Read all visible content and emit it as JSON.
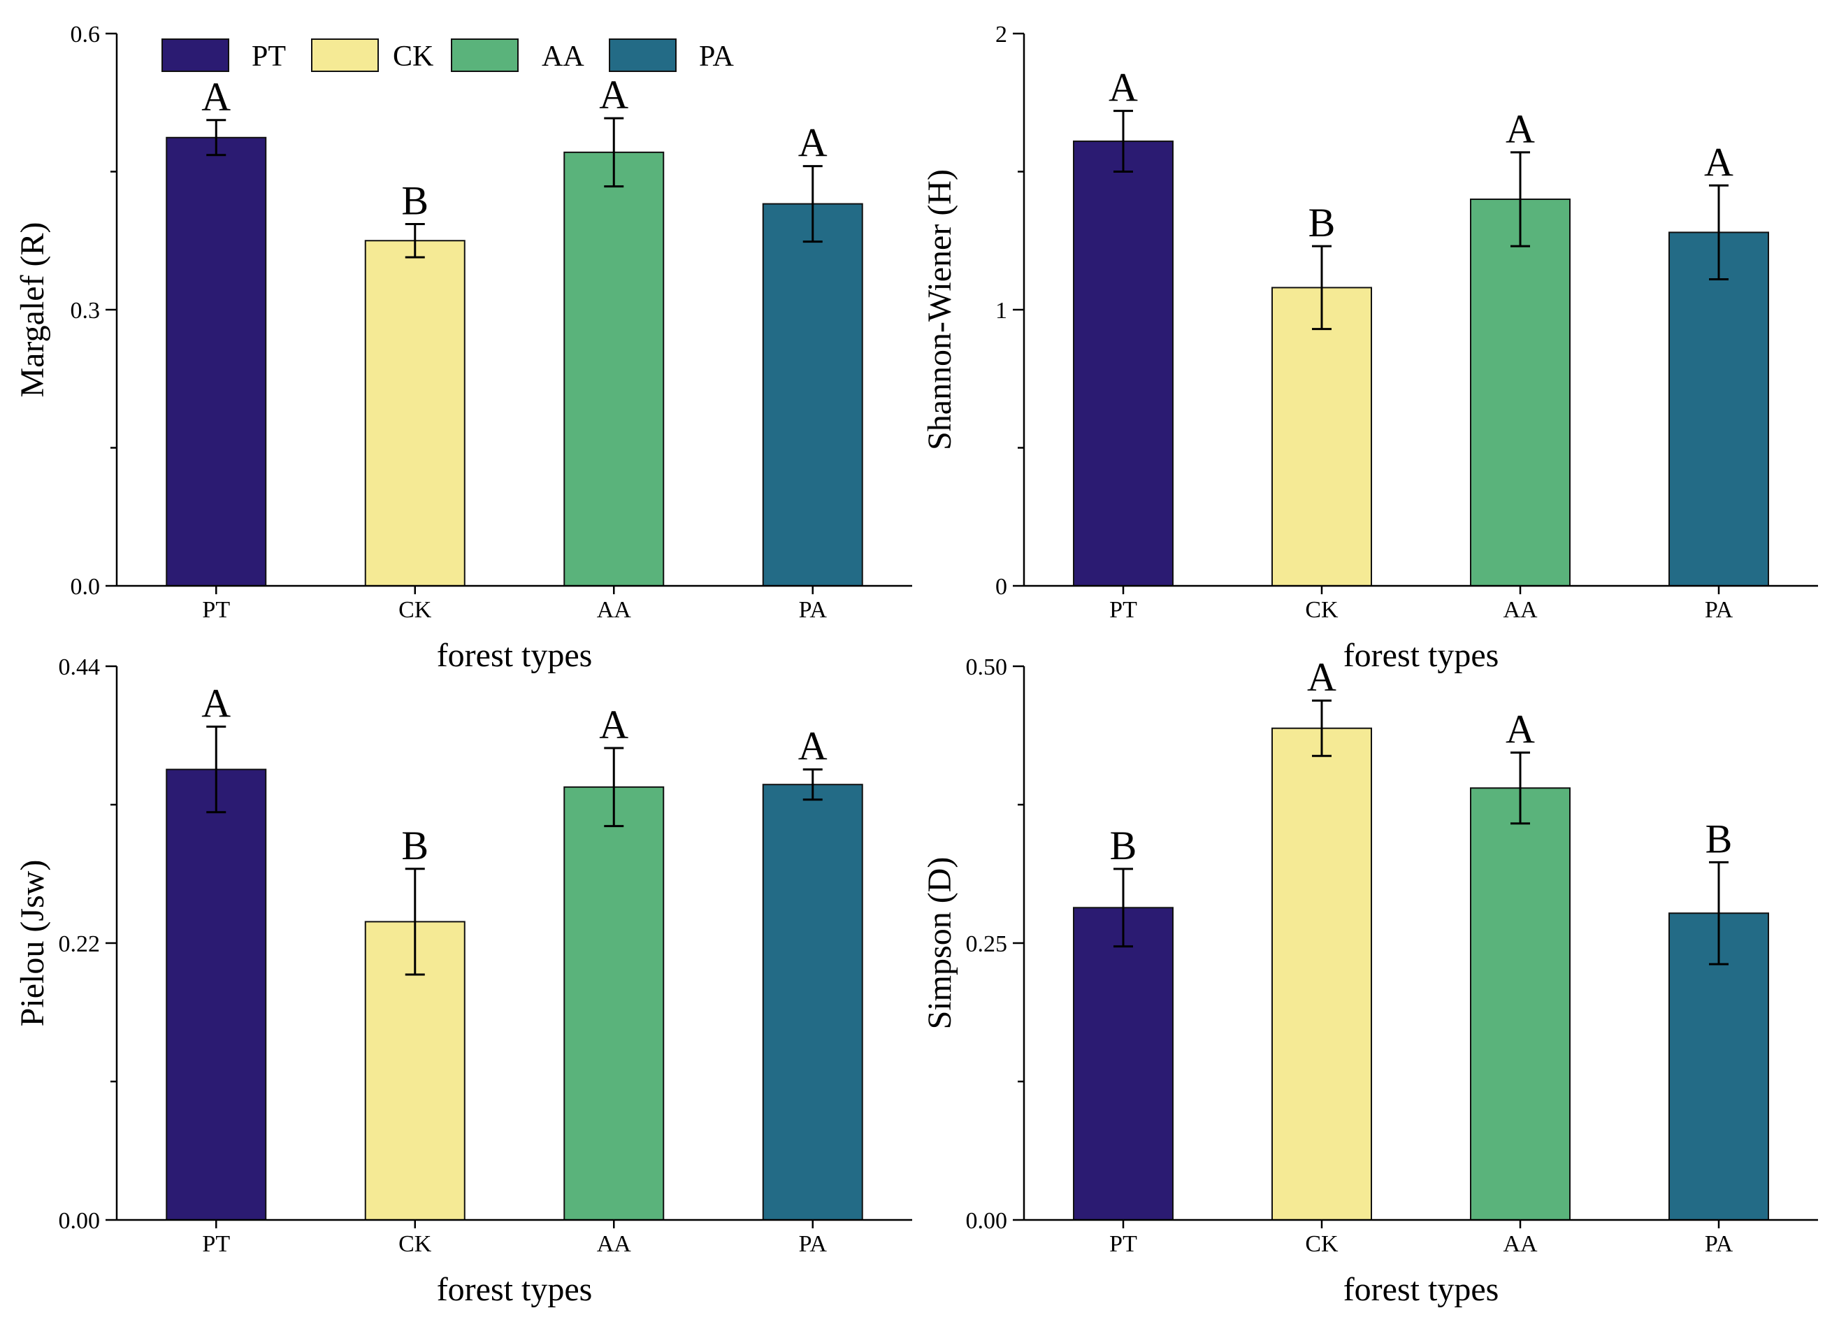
{
  "figure": {
    "panel_count": 4
  },
  "legend": {
    "entries": [
      {
        "label": "PT",
        "color": "#2b1b72"
      },
      {
        "label": "CK",
        "color": "#f5ea95"
      },
      {
        "label": "AA",
        "color": "#5ab37b"
      },
      {
        "label": "PA",
        "color": "#236b86"
      }
    ]
  },
  "chart_data": [
    {
      "type": "bar",
      "ylabel": "Margalef (R)",
      "xlabel": "forest types",
      "categories": [
        "PT",
        "CK",
        "AA",
        "PA"
      ],
      "values": [
        0.487,
        0.375,
        0.471,
        0.415
      ],
      "errors": [
        0.019,
        0.018,
        0.037,
        0.041
      ],
      "significance": [
        "A",
        "B",
        "A",
        "A"
      ],
      "ylim": [
        0,
        0.6
      ],
      "yticks": [
        0,
        0.3,
        0.6
      ],
      "ytick_labels": [
        "0.0",
        "0.3",
        "0.6"
      ],
      "colors": [
        "#2b1b72",
        "#f5ea95",
        "#5ab37b",
        "#236b86"
      ]
    },
    {
      "type": "bar",
      "ylabel": "Shannon-Wiener (H)",
      "xlabel": "forest types",
      "categories": [
        "PT",
        "CK",
        "AA",
        "PA"
      ],
      "values": [
        1.61,
        1.08,
        1.4,
        1.28
      ],
      "errors": [
        0.11,
        0.15,
        0.17,
        0.17
      ],
      "significance": [
        "A",
        "B",
        "A",
        "A"
      ],
      "ylim": [
        0,
        2
      ],
      "yticks": [
        0,
        1,
        2
      ],
      "ytick_labels": [
        "0",
        "1",
        "2"
      ],
      "colors": [
        "#2b1b72",
        "#f5ea95",
        "#5ab37b",
        "#236b86"
      ]
    },
    {
      "type": "bar",
      "ylabel": "Pielou (Jsw)",
      "xlabel": "forest types",
      "categories": [
        "PT",
        "CK",
        "AA",
        "PA"
      ],
      "values": [
        0.358,
        0.237,
        0.344,
        0.346
      ],
      "errors": [
        0.034,
        0.042,
        0.031,
        0.012
      ],
      "significance": [
        "A",
        "B",
        "A",
        "A"
      ],
      "ylim": [
        0,
        0.44
      ],
      "yticks": [
        0,
        0.22,
        0.44
      ],
      "ytick_labels": [
        "0.00",
        "0.22",
        "0.44"
      ],
      "colors": [
        "#2b1b72",
        "#f5ea95",
        "#5ab37b",
        "#236b86"
      ]
    },
    {
      "type": "bar",
      "ylabel": "Simpson (D)",
      "xlabel": "forest types",
      "categories": [
        "PT",
        "CK",
        "AA",
        "PA"
      ],
      "values": [
        0.282,
        0.444,
        0.39,
        0.277
      ],
      "errors": [
        0.035,
        0.025,
        0.032,
        0.046
      ],
      "significance": [
        "B",
        "A",
        "A",
        "B"
      ],
      "ylim": [
        0,
        0.5
      ],
      "yticks": [
        0,
        0.25,
        0.5
      ],
      "ytick_labels": [
        "0.00",
        "0.25",
        "0.50"
      ],
      "colors": [
        "#2b1b72",
        "#f5ea95",
        "#5ab37b",
        "#236b86"
      ]
    }
  ]
}
